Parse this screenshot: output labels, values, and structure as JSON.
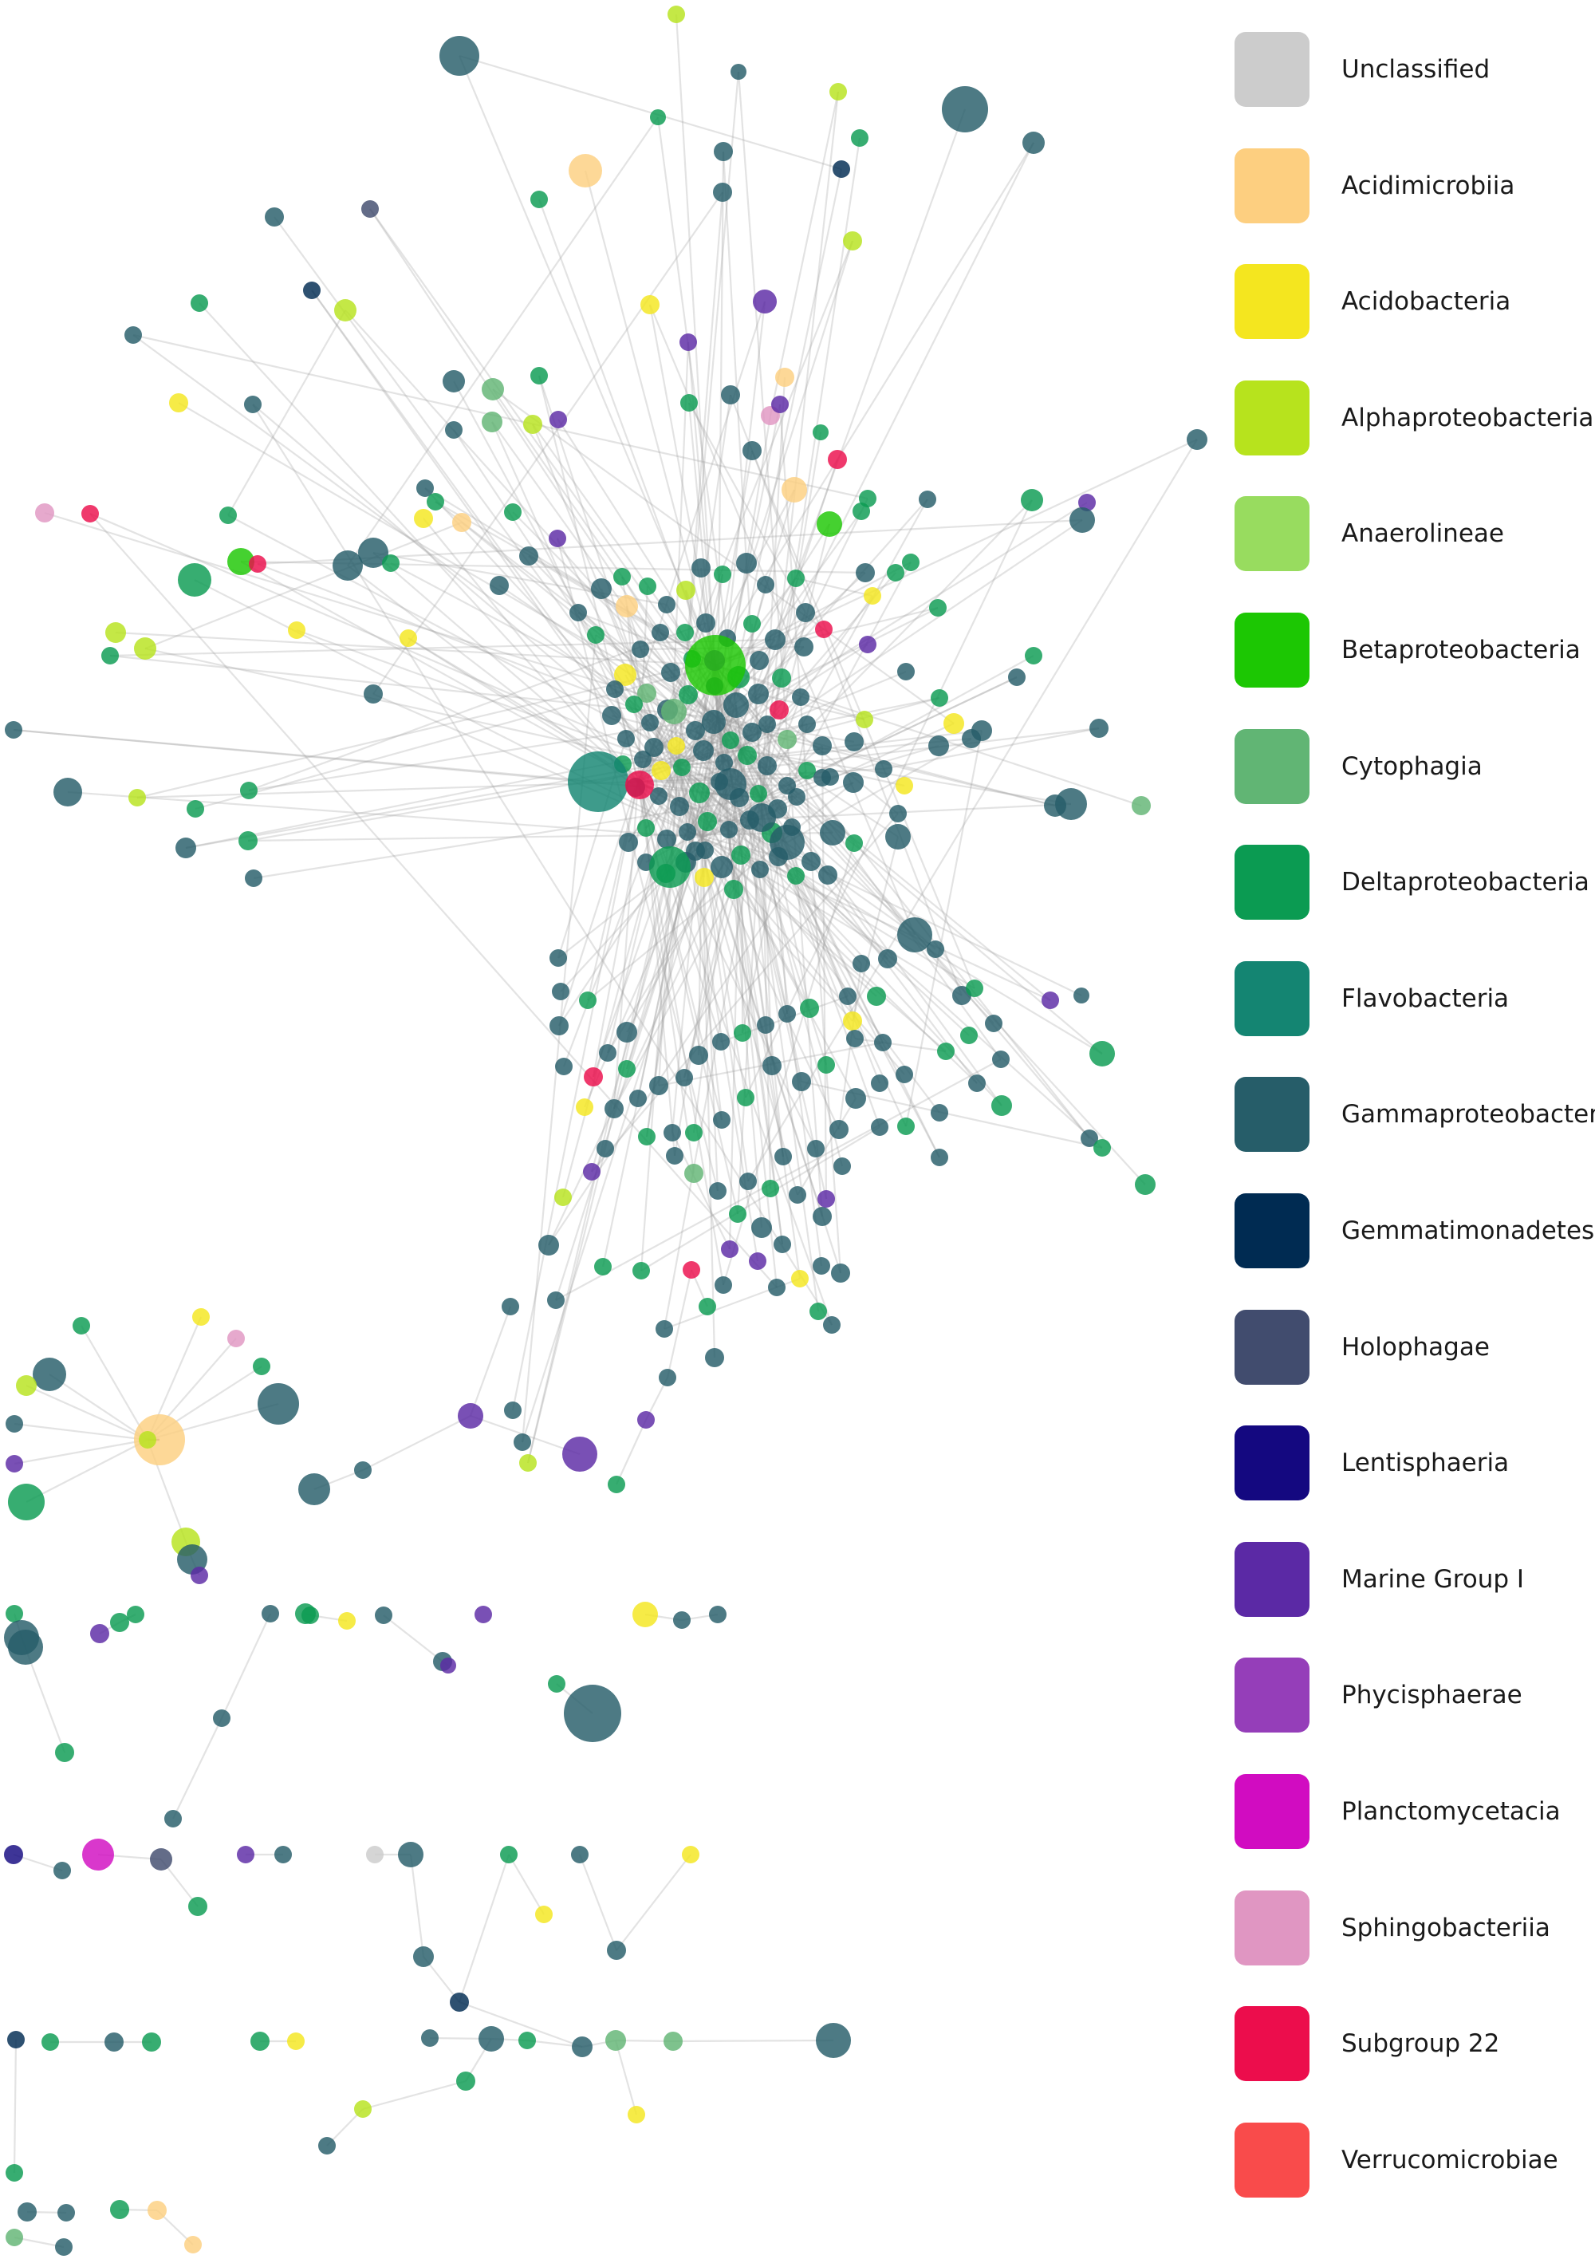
{
  "legend": {
    "items": [
      {
        "label": "Unclassified",
        "color": "#cccccc"
      },
      {
        "label": "Acidimicrobiia",
        "color": "#fdcf80"
      },
      {
        "label": "Acidobacteria",
        "color": "#f4e61f"
      },
      {
        "label": "Alphaproteobacteria",
        "color": "#b7e31d"
      },
      {
        "label": "Anaerolineae",
        "color": "#98dc5f"
      },
      {
        "label": "Betaproteobacteria",
        "color": "#1cc703"
      },
      {
        "label": "Cytophagia",
        "color": "#61b574"
      },
      {
        "label": "Deltaproteobacteria",
        "color": "#0b9b52"
      },
      {
        "label": "Flavobacteria",
        "color": "#148572"
      },
      {
        "label": "Gammaproteobacteria",
        "color": "#265d69"
      },
      {
        "label": "Gemmatimonadetes",
        "color": "#002b52"
      },
      {
        "label": "Holophagae",
        "color": "#414c6e"
      },
      {
        "label": "Lentisphaeria",
        "color": "#140880"
      },
      {
        "label": "Marine Group I",
        "color": "#5b29a5"
      },
      {
        "label": "Phycisphaerae",
        "color": "#953eb9"
      },
      {
        "label": "Planctomycetacia",
        "color": "#d10cc1"
      },
      {
        "label": "Sphingobacteriia",
        "color": "#e096c2"
      },
      {
        "label": "Subgroup 22",
        "color": "#ec0d4c"
      },
      {
        "label": "Verrucomicrobiae",
        "color": "#f94b4b"
      }
    ]
  }
}
